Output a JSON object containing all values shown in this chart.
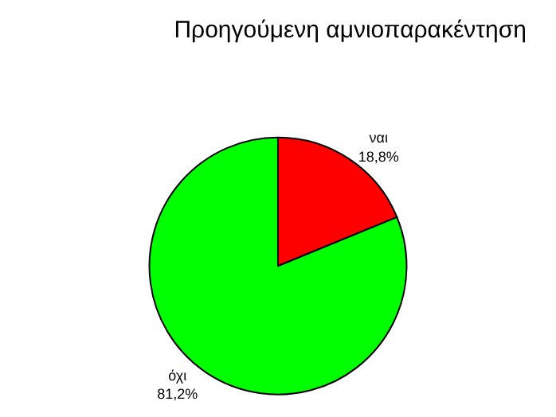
{
  "chart_data": {
    "type": "pie",
    "title": "Προηγούμενη αμνιοπαρακέντηση",
    "categories": [
      "ναι",
      "όχι"
    ],
    "values": [
      18.8,
      81.2
    ],
    "value_labels": [
      "18,8%",
      "81,2%"
    ],
    "colors": [
      "#ff0000",
      "#00ff00"
    ],
    "legend": false
  }
}
